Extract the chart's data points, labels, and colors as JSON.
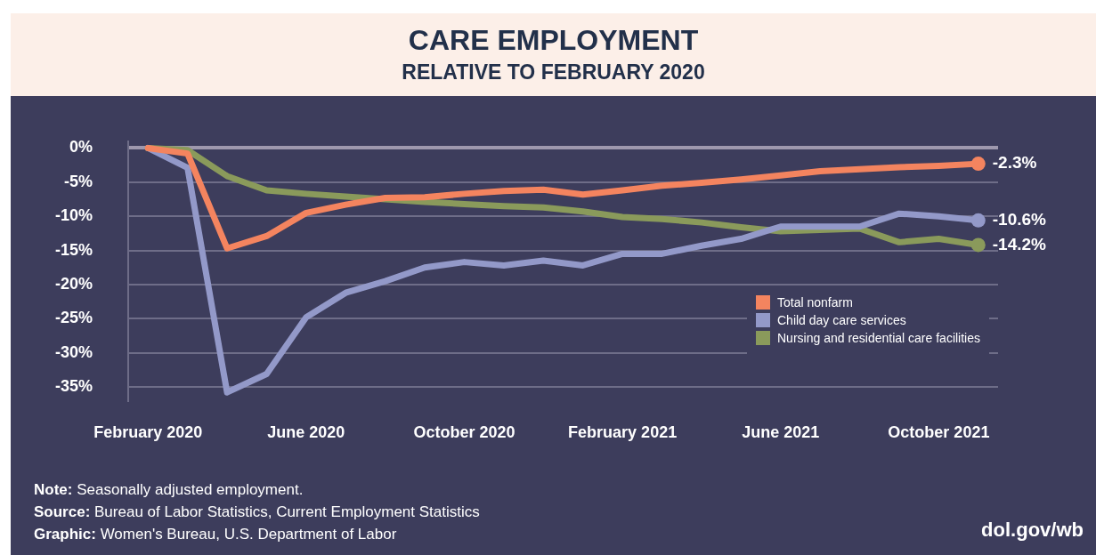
{
  "chart_data": {
    "type": "line",
    "title": "CARE EMPLOYMENT",
    "subtitle": "RELATIVE TO FEBRUARY 2020",
    "categories": [
      "February 2020",
      null,
      null,
      null,
      "June 2020",
      null,
      null,
      null,
      "October 2020",
      null,
      null,
      null,
      "February 2021",
      null,
      null,
      null,
      "June 2021",
      null,
      null,
      null,
      "October 2021",
      null
    ],
    "series": [
      {
        "name": "Total nonfarm",
        "color": "#f4845f",
        "values": [
          0,
          -0.8,
          -14.7,
          -12.9,
          -9.5,
          -8.3,
          -7.3,
          -7.2,
          -6.7,
          -6.3,
          -6.1,
          -6.8,
          -6.2,
          -5.5,
          -5.1,
          -4.6,
          -4.0,
          -3.4,
          -3.1,
          -2.8,
          -2.6,
          -2.3
        ],
        "value_labels": [
          null,
          null,
          null,
          null,
          null,
          null,
          null,
          null,
          null,
          null,
          null,
          null,
          null,
          null,
          null,
          null,
          null,
          null,
          null,
          null,
          null,
          "-2.3%"
        ]
      },
      {
        "name": "Child day care services",
        "color": "#9399c9",
        "values": [
          0,
          -2.9,
          -35.8,
          -33.1,
          -24.8,
          -21.2,
          -19.5,
          -17.5,
          -16.7,
          -17.2,
          -16.5,
          -17.2,
          -15.5,
          -15.5,
          -14.3,
          -13.3,
          -11.5,
          -11.5,
          -11.5,
          -9.6,
          -10.0,
          -10.6
        ],
        "value_labels": [
          null,
          null,
          null,
          null,
          null,
          null,
          null,
          null,
          null,
          null,
          null,
          null,
          null,
          null,
          null,
          null,
          null,
          null,
          null,
          null,
          null,
          "-10.6%"
        ]
      },
      {
        "name": "Nursing and residential care facilities",
        "color": "#8a9a5b",
        "values": [
          0,
          -0.3,
          -4.1,
          -6.2,
          -6.7,
          -7.1,
          -7.5,
          -7.9,
          -8.2,
          -8.5,
          -8.7,
          -9.3,
          -10.1,
          -10.4,
          -10.9,
          -11.6,
          -12.2,
          -12.0,
          -11.8,
          -13.8,
          -13.3,
          -14.2
        ],
        "value_labels": [
          null,
          null,
          null,
          null,
          null,
          null,
          null,
          null,
          null,
          null,
          null,
          null,
          null,
          null,
          null,
          null,
          null,
          null,
          null,
          null,
          null,
          "-14.2%"
        ]
      }
    ],
    "ylim": [
      -37,
      1
    ],
    "yticks": [
      {
        "value": 0,
        "label": "0%"
      },
      {
        "value": -5,
        "label": "-5%"
      },
      {
        "value": -10,
        "label": "-10%"
      },
      {
        "value": -15,
        "label": "-15%"
      },
      {
        "value": -20,
        "label": "-20%"
      },
      {
        "value": -25,
        "label": "-25%"
      },
      {
        "value": -30,
        "label": "-30%"
      },
      {
        "value": -35,
        "label": "-35%"
      }
    ],
    "grid": "y",
    "legend": "bottom right",
    "marker": "none",
    "line_style": "solid",
    "annotations": [
      "Note: Seasonally adjusted employment.",
      "Source: Bureau of Labor Statistics, Current Employment Statistics",
      "Graphic: Women's Bureau, U.S. Department of Labor",
      "dol.gov/wb"
    ]
  }
}
